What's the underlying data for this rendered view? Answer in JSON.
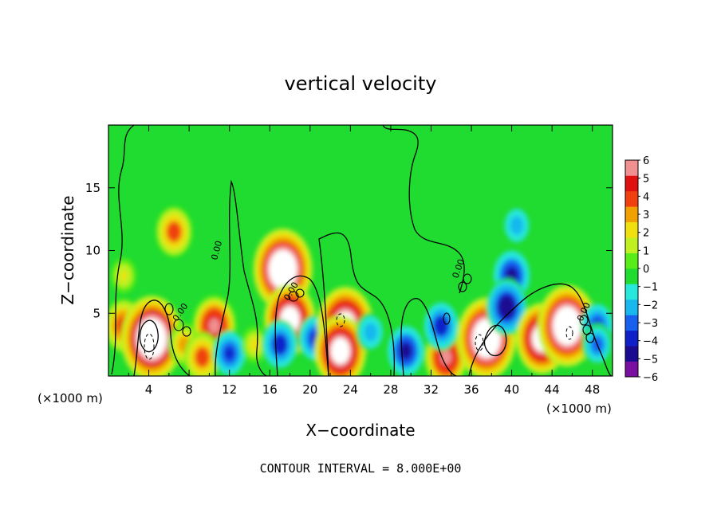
{
  "chart_data": {
    "type": "heatmap",
    "title": "vertical velocity",
    "xlabel": "X−coordinate",
    "ylabel": "Z−coordinate",
    "x_unit_label": "(×1000 m)",
    "z_unit_label": "(×1000 m)",
    "xlim": [
      0,
      50
    ],
    "ylim": [
      0,
      20
    ],
    "x_ticks": [
      4,
      8,
      12,
      16,
      20,
      24,
      28,
      32,
      36,
      40,
      44,
      48
    ],
    "y_ticks": [
      5,
      10,
      15
    ],
    "colorbar": {
      "min": -6,
      "max": 6,
      "ticks": [
        6,
        5,
        4,
        3,
        2,
        1,
        0,
        -1,
        -2,
        -3,
        -4,
        -5,
        -6
      ],
      "tick_labels": [
        "6",
        "5",
        "4",
        "3",
        "2",
        "1",
        "0",
        "−1",
        "−2",
        "−3",
        "−4",
        "−5",
        "−6"
      ],
      "colors": [
        "#7a10a0",
        "#1a0a90",
        "#1020c8",
        "#1860ee",
        "#18b8ee",
        "#28e8dc",
        "#20dc30",
        "#58ec18",
        "#c0f020",
        "#f0e010",
        "#f0a000",
        "#f04010",
        "#e01010",
        "#f09090"
      ],
      "over_color": "#ffffff"
    },
    "features": [
      {
        "x": 6.5,
        "z": 11.5,
        "w": 4.0
      },
      {
        "x": 1.5,
        "z": 4.0,
        "w": 4.5
      },
      {
        "x": 1.5,
        "z": 8.0,
        "w": 1.8
      },
      {
        "x": 5.0,
        "z": 2.5,
        "w": -4.5
      },
      {
        "x": 4.3,
        "z": 3.0,
        "w": 9.0
      },
      {
        "x": 7.5,
        "z": 2.5,
        "w": 3.0
      },
      {
        "x": 10.5,
        "z": 4.0,
        "w": 5.5
      },
      {
        "x": 9.3,
        "z": 1.5,
        "w": 4.0
      },
      {
        "x": 12.0,
        "z": 1.8,
        "w": -3.5
      },
      {
        "x": 14.5,
        "z": 2.5,
        "w": 2.0
      },
      {
        "x": 17.3,
        "z": 8.5,
        "w": 8.5
      },
      {
        "x": 18.0,
        "z": 4.5,
        "w": 7.0
      },
      {
        "x": 17.0,
        "z": 2.5,
        "w": -4.0
      },
      {
        "x": 20.5,
        "z": 3.0,
        "w": -3.5
      },
      {
        "x": 23.5,
        "z": 4.0,
        "w": 8.0
      },
      {
        "x": 23.0,
        "z": 2.0,
        "w": 7.0
      },
      {
        "x": 26.0,
        "z": 3.5,
        "w": -2.5
      },
      {
        "x": 29.5,
        "z": 2.0,
        "w": -4.5
      },
      {
        "x": 33.5,
        "z": 1.5,
        "w": 5.5
      },
      {
        "x": 33.0,
        "z": 4.0,
        "w": -4.0
      },
      {
        "x": 37.5,
        "z": 3.0,
        "w": 8.5
      },
      {
        "x": 40.0,
        "z": 8.0,
        "w": -4.5
      },
      {
        "x": 39.5,
        "z": 5.5,
        "w": -5.0
      },
      {
        "x": 40.5,
        "z": 12.0,
        "w": -2.5
      },
      {
        "x": 43.0,
        "z": 3.0,
        "w": 7.0
      },
      {
        "x": 45.5,
        "z": 4.0,
        "w": 8.5
      },
      {
        "x": 48.5,
        "z": 4.0,
        "w": -3.5
      },
      {
        "x": 48.5,
        "z": 2.5,
        "w": -3.0
      }
    ],
    "contour_labels": [
      "0.00",
      "0.00",
      "0.00",
      "0.00",
      "0.00"
    ]
  },
  "footer": {
    "contour_interval_text": "CONTOUR INTERVAL = 8.000E+00"
  }
}
